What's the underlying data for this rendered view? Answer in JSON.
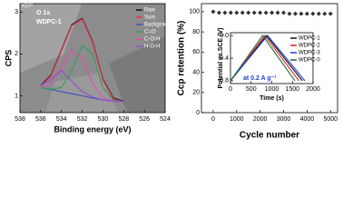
{
  "chart_data": [
    {
      "type": "line",
      "xlabel": "Binding energy (eV)",
      "ylabel": "CPS",
      "y_multiplier": "x10⁴",
      "annotations": [
        "O 1s",
        "WDPC-1"
      ],
      "xlim": [
        538,
        524
      ],
      "xticks": [
        538,
        536,
        534,
        532,
        530,
        528,
        526,
        524
      ],
      "ylim": [
        0.6,
        3.2
      ],
      "yticks": [
        1,
        2,
        3
      ],
      "x": [
        536,
        535,
        534,
        533,
        532,
        531,
        530,
        529,
        528
      ],
      "legend": "top-right",
      "series": [
        {
          "name": "Raw",
          "color": "#111111",
          "values": [
            1.25,
            1.5,
            2.1,
            2.7,
            2.85,
            2.3,
            1.4,
            0.95,
            0.87
          ]
        },
        {
          "name": "Sum",
          "color": "#e8324a",
          "values": [
            1.23,
            1.48,
            2.08,
            2.68,
            2.83,
            2.28,
            1.38,
            0.93,
            0.86
          ]
        },
        {
          "name": "Background",
          "color": "#3b4fc4",
          "values": [
            1.2,
            1.15,
            1.1,
            1.05,
            1.0,
            0.95,
            0.9,
            0.88,
            0.86
          ]
        },
        {
          "name": "C=O",
          "color": "#2f9e5a",
          "values": [
            1.2,
            1.16,
            1.2,
            1.6,
            2.2,
            2.0,
            1.2,
            0.9,
            0.86
          ]
        },
        {
          "name": "C-O-H",
          "color": "#e04fb0",
          "values": [
            1.2,
            1.3,
            1.7,
            2.1,
            1.9,
            1.3,
            0.95,
            0.88,
            0.86
          ]
        },
        {
          "name": "H-O-H",
          "color": "#8a4fd0",
          "values": [
            1.25,
            1.4,
            1.6,
            1.35,
            1.1,
            0.97,
            0.9,
            0.88,
            0.86
          ]
        }
      ]
    },
    {
      "type": "scatter",
      "xlabel": "Cycle number",
      "ylabel": "Ccp retention (%)",
      "xlim": [
        -500,
        5300
      ],
      "xticks": [
        0,
        1000,
        2000,
        3000,
        4000,
        5000
      ],
      "ylim": [
        0,
        108
      ],
      "yticks": [
        0,
        20,
        40,
        60,
        80,
        100
      ],
      "color": "#333333",
      "x": [
        0,
        250,
        500,
        750,
        1000,
        1250,
        1500,
        1750,
        2000,
        2250,
        2500,
        2750,
        3000,
        3250,
        3500,
        3750,
        4000,
        4250,
        4500,
        4750,
        5000
      ],
      "values": [
        100,
        99,
        99,
        99,
        99,
        99,
        99,
        99,
        99,
        99,
        99,
        99,
        99,
        98,
        98,
        98,
        98,
        98,
        98,
        98,
        98
      ]
    },
    {
      "type": "line",
      "xlabel": "Time (s)",
      "ylabel": "Potential vs.SCE (V)",
      "annotations": [
        "at 0.2 A g⁻¹"
      ],
      "xlim": [
        0,
        2000
      ],
      "xticks": [
        0,
        500,
        1000,
        1500,
        2000
      ],
      "ylim": [
        -0.85,
        0.05
      ],
      "yticks": [
        -0.8,
        -0.4,
        {
          "value": 0,
          "label": "0.0"
        }
      ],
      "legend": "top-right",
      "series": [
        {
          "name": "WDPC-1",
          "color": "#111111",
          "x": [
            0,
            870,
            1740
          ],
          "values": [
            -0.8,
            0,
            -0.8
          ]
        },
        {
          "name": "WDPC-2",
          "color": "#e02020",
          "x": [
            0,
            830,
            1660
          ],
          "values": [
            -0.8,
            0,
            -0.8
          ]
        },
        {
          "name": "WDPC-3",
          "color": "#2040d0",
          "x": [
            0,
            900,
            1800
          ],
          "values": [
            -0.8,
            0,
            -0.8
          ]
        },
        {
          "name": "WDPC-0",
          "color": "#1f6b2a",
          "x": [
            0,
            780,
            1560
          ],
          "values": [
            -0.8,
            0,
            -0.8
          ]
        }
      ]
    }
  ]
}
